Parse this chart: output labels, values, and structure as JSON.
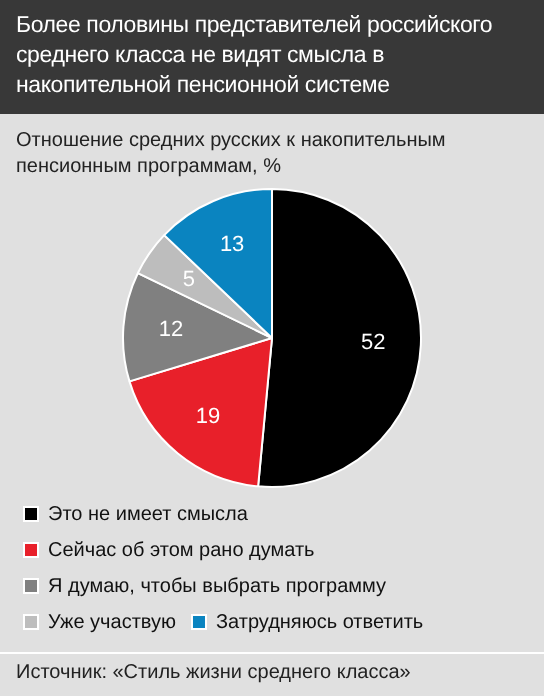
{
  "chart_data": {
    "type": "pie",
    "title": "Более половины представителей российского среднего класса не видят смысла в накопительной пенсионной системе",
    "subtitle": "Отношение средних русских к накопительным пенсионным программам, %",
    "categories": [
      "Это не имеет смысла",
      "Сейчас об этом рано думать",
      "Я думаю, чтобы выбрать программу",
      "Уже участвую",
      "Затрудняюсь ответить"
    ],
    "values": [
      52,
      19,
      12,
      5,
      13
    ],
    "colors": [
      "#000000",
      "#e8202a",
      "#808080",
      "#bdbdbd",
      "#0a84c0"
    ],
    "data_labels": true,
    "legend": "bottom",
    "annotations": [
      "Источник: «Стиль жизни среднего класса»"
    ]
  }
}
